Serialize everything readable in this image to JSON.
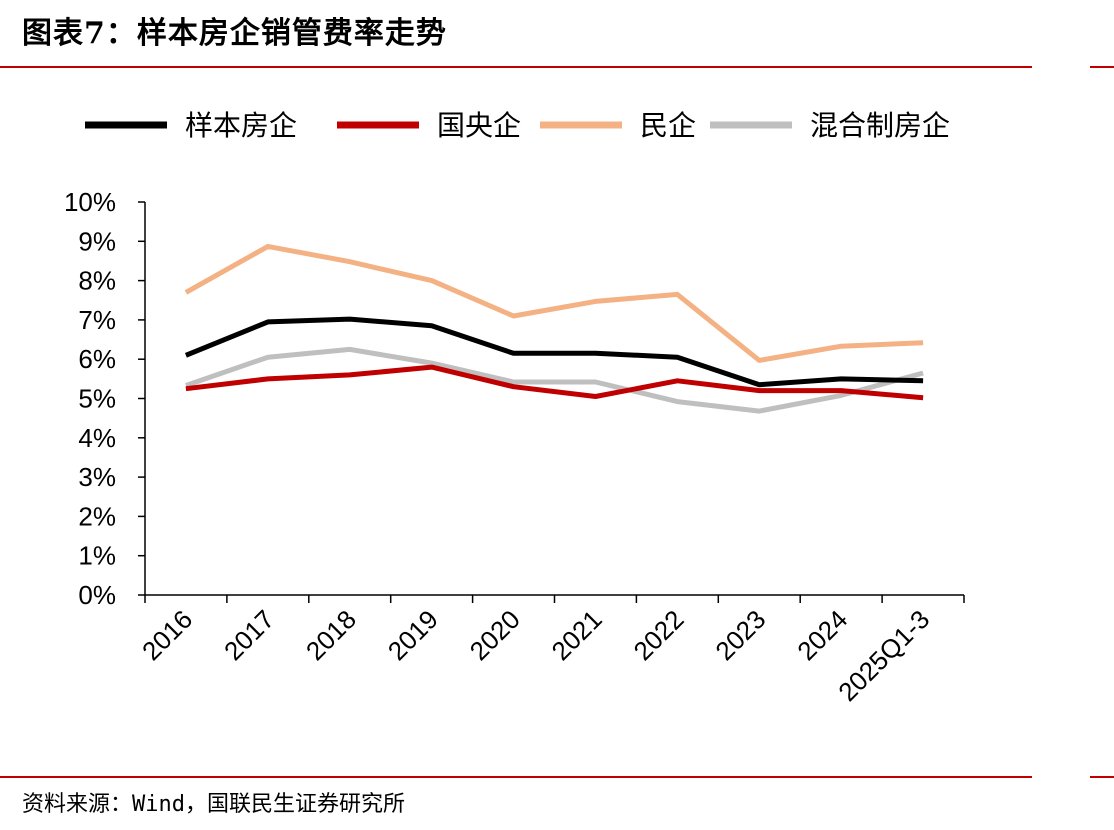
{
  "header": {
    "title": "图表7：样本房企销管费率走势"
  },
  "footer": {
    "source": "资料来源：Wind，国联民生证券研究所"
  },
  "colors": {
    "accent_rule": "#c00000"
  },
  "chart_data": {
    "type": "line",
    "title": "",
    "xlabel": "",
    "ylabel": "",
    "categories": [
      "2016",
      "2017",
      "2018",
      "2019",
      "2020",
      "2021",
      "2022",
      "2023",
      "2024",
      "2025Q1-3"
    ],
    "y_ticks": [
      "0%",
      "1%",
      "2%",
      "3%",
      "4%",
      "5%",
      "6%",
      "7%",
      "8%",
      "9%",
      "10%"
    ],
    "ylim": [
      0,
      10
    ],
    "y_unit": "%",
    "legend_position": "top",
    "grid": false,
    "series": [
      {
        "name": "样本房企",
        "color": "#000000",
        "values": [
          6.1,
          6.95,
          7.02,
          6.85,
          6.15,
          6.15,
          6.05,
          5.35,
          5.5,
          5.45
        ]
      },
      {
        "name": "国央企",
        "color": "#c00000",
        "values": [
          5.25,
          5.5,
          5.6,
          5.8,
          5.3,
          5.05,
          5.45,
          5.2,
          5.2,
          5.02
        ]
      },
      {
        "name": "民企",
        "color": "#f4b183",
        "values": [
          7.7,
          8.87,
          8.48,
          8.0,
          7.1,
          7.47,
          7.65,
          5.97,
          6.33,
          6.42
        ]
      },
      {
        "name": "混合制房企",
        "color": "#bfbfbf",
        "values": [
          5.33,
          6.05,
          6.25,
          5.9,
          5.42,
          5.42,
          4.92,
          4.68,
          5.08,
          5.65
        ]
      }
    ]
  }
}
